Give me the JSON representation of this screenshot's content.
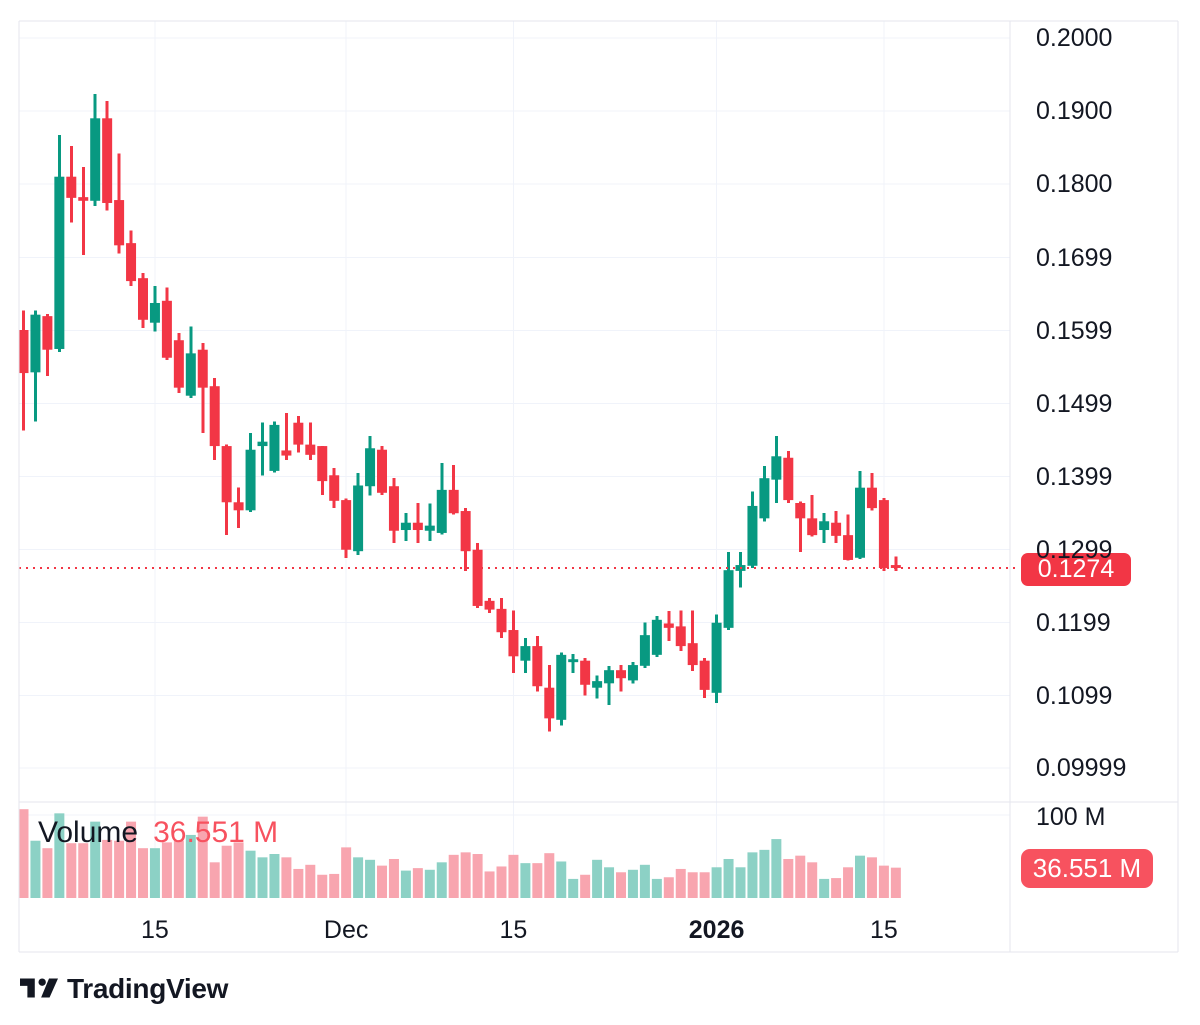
{
  "legend": {
    "title": "Volume",
    "value": "36.551 M"
  },
  "footer": {
    "brand": "TradingView"
  },
  "chart_data": {
    "type": "candlestick_with_volume",
    "description": "Daily crypto price candlesticks with volume pane, TradingView snapshot",
    "columns": [
      "open",
      "high",
      "low",
      "close",
      "volume_millions"
    ],
    "price_pane": {
      "y_ticks": [
        {
          "label": "0.2000",
          "value": 0.2
        },
        {
          "label": "0.1900",
          "value": 0.19
        },
        {
          "label": "0.1800",
          "value": 0.18
        },
        {
          "label": "0.1699",
          "value": 0.1699
        },
        {
          "label": "0.1599",
          "value": 0.1599
        },
        {
          "label": "0.1499",
          "value": 0.1499
        },
        {
          "label": "0.1399",
          "value": 0.1399
        },
        {
          "label": "0.1299",
          "value": 0.1299
        },
        {
          "label": "0.1199",
          "value": 0.1199
        },
        {
          "label": "0.1099",
          "value": 0.1099
        },
        {
          "label": "0.09999",
          "value": 0.09999
        }
      ],
      "last_price": {
        "label": "0.1274",
        "value": 0.1274
      }
    },
    "volume_pane": {
      "y_ticks": [
        {
          "label": "100 M",
          "value": 100
        }
      ],
      "last_volume": {
        "label": "36.551 M",
        "value": 36.551
      }
    },
    "x_ticks": [
      {
        "index": 11,
        "label": "15",
        "bold": false
      },
      {
        "index": 27,
        "label": "Dec",
        "bold": false
      },
      {
        "index": 41,
        "label": "15",
        "bold": false
      },
      {
        "index": 58,
        "label": "2026",
        "bold": true
      },
      {
        "index": 72,
        "label": "15",
        "bold": false
      }
    ],
    "colors": {
      "up": "#089981",
      "down": "#f23645",
      "vol_up": "#8cd1c5",
      "vol_down": "#f8a5af",
      "price_line": "#f23645",
      "grid": "#f0f3fa",
      "border": "#e4e6ee",
      "text": "#131722"
    },
    "candles": [
      [
        0.16,
        0.1627,
        0.1462,
        0.1541,
        107
      ],
      [
        0.1542,
        0.1627,
        0.1475,
        0.1621,
        69
      ],
      [
        0.1619,
        0.1622,
        0.1537,
        0.1573,
        60
      ],
      [
        0.1574,
        0.1867,
        0.157,
        0.181,
        102
      ],
      [
        0.181,
        0.1852,
        0.1747,
        0.1781,
        66
      ],
      [
        0.1782,
        0.1823,
        0.1703,
        0.1777,
        66
      ],
      [
        0.1777,
        0.1923,
        0.177,
        0.189,
        92
      ],
      [
        0.189,
        0.1914,
        0.1764,
        0.1774,
        70
      ],
      [
        0.1778,
        0.1842,
        0.1705,
        0.1716,
        69
      ],
      [
        0.1719,
        0.1736,
        0.166,
        0.1667,
        92
      ],
      [
        0.1671,
        0.1678,
        0.1603,
        0.1614,
        60
      ],
      [
        0.161,
        0.166,
        0.1598,
        0.1637,
        60
      ],
      [
        0.164,
        0.1658,
        0.1559,
        0.1562,
        67
      ],
      [
        0.1586,
        0.1596,
        0.1514,
        0.1521,
        69
      ],
      [
        0.151,
        0.1605,
        0.1507,
        0.1568,
        76
      ],
      [
        0.1573,
        0.1582,
        0.1459,
        0.1521,
        98
      ],
      [
        0.1523,
        0.1534,
        0.1422,
        0.1441,
        43
      ],
      [
        0.1441,
        0.1443,
        0.1319,
        0.1364,
        63
      ],
      [
        0.1364,
        0.1384,
        0.1329,
        0.1353,
        67
      ],
      [
        0.1353,
        0.1459,
        0.1351,
        0.1436,
        57
      ],
      [
        0.1441,
        0.1473,
        0.1401,
        0.1447,
        49
      ],
      [
        0.1407,
        0.1475,
        0.1405,
        0.147,
        53
      ],
      [
        0.1435,
        0.1486,
        0.1422,
        0.1428,
        49
      ],
      [
        0.1473,
        0.1482,
        0.1432,
        0.1443,
        35
      ],
      [
        0.1443,
        0.1473,
        0.1422,
        0.1429,
        40
      ],
      [
        0.1441,
        0.1441,
        0.1374,
        0.1393,
        28
      ],
      [
        0.1401,
        0.1411,
        0.1356,
        0.1366,
        29
      ],
      [
        0.1367,
        0.1369,
        0.1288,
        0.1299,
        61
      ],
      [
        0.1297,
        0.1404,
        0.1292,
        0.1387,
        49
      ],
      [
        0.1386,
        0.1455,
        0.1373,
        0.1438,
        46
      ],
      [
        0.1436,
        0.1441,
        0.1374,
        0.1377,
        39
      ],
      [
        0.1386,
        0.1397,
        0.1308,
        0.1325,
        47
      ],
      [
        0.1326,
        0.1349,
        0.1311,
        0.1336,
        33
      ],
      [
        0.1336,
        0.1363,
        0.1308,
        0.1326,
        36
      ],
      [
        0.1325,
        0.1362,
        0.1311,
        0.1332,
        34
      ],
      [
        0.1322,
        0.1418,
        0.132,
        0.1381,
        43
      ],
      [
        0.1381,
        0.1415,
        0.1347,
        0.1349,
        52
      ],
      [
        0.1352,
        0.1356,
        0.127,
        0.1297,
        55
      ],
      [
        0.1299,
        0.1308,
        0.1219,
        0.1222,
        53
      ],
      [
        0.1229,
        0.1233,
        0.1212,
        0.1217,
        32
      ],
      [
        0.1218,
        0.1233,
        0.1178,
        0.1186,
        38
      ],
      [
        0.1189,
        0.1216,
        0.113,
        0.1153,
        52
      ],
      [
        0.1147,
        0.1178,
        0.113,
        0.1167,
        42
      ],
      [
        0.1167,
        0.1181,
        0.1105,
        0.1112,
        42
      ],
      [
        0.111,
        0.1141,
        0.105,
        0.1068,
        54
      ],
      [
        0.1066,
        0.1158,
        0.1058,
        0.1155,
        44
      ],
      [
        0.1145,
        0.1156,
        0.113,
        0.1149,
        23
      ],
      [
        0.1147,
        0.1151,
        0.1099,
        0.1114,
        28
      ],
      [
        0.111,
        0.1127,
        0.1095,
        0.1119,
        46
      ],
      [
        0.1116,
        0.114,
        0.1086,
        0.1134,
        37
      ],
      [
        0.1134,
        0.1141,
        0.1105,
        0.1123,
        31
      ],
      [
        0.112,
        0.1145,
        0.1116,
        0.1141,
        34
      ],
      [
        0.114,
        0.1199,
        0.1137,
        0.1182,
        40
      ],
      [
        0.1155,
        0.1208,
        0.1152,
        0.1203,
        23
      ],
      [
        0.1198,
        0.1215,
        0.1174,
        0.1192,
        25
      ],
      [
        0.1194,
        0.1216,
        0.116,
        0.1167,
        35
      ],
      [
        0.1171,
        0.1216,
        0.1133,
        0.1141,
        31
      ],
      [
        0.1147,
        0.1151,
        0.1096,
        0.1107,
        31
      ],
      [
        0.1103,
        0.121,
        0.1089,
        0.1199,
        37
      ],
      [
        0.1192,
        0.1296,
        0.1189,
        0.1271,
        47
      ],
      [
        0.127,
        0.1296,
        0.1247,
        0.1278,
        37
      ],
      [
        0.1277,
        0.1379,
        0.1274,
        0.1359,
        55
      ],
      [
        0.1342,
        0.1414,
        0.1338,
        0.1397,
        58
      ],
      [
        0.1395,
        0.1455,
        0.1363,
        0.1427,
        71
      ],
      [
        0.1425,
        0.1434,
        0.1363,
        0.1367,
        47
      ],
      [
        0.1363,
        0.1365,
        0.1296,
        0.1342,
        51
      ],
      [
        0.1342,
        0.1374,
        0.1317,
        0.1319,
        43
      ],
      [
        0.1326,
        0.1349,
        0.1308,
        0.1338,
        23
      ],
      [
        0.1336,
        0.1352,
        0.1308,
        0.1318,
        24
      ],
      [
        0.1319,
        0.1347,
        0.1284,
        0.1285,
        37
      ],
      [
        0.1288,
        0.1407,
        0.1286,
        0.1384,
        51
      ],
      [
        0.1384,
        0.1404,
        0.1353,
        0.1356,
        49
      ],
      [
        0.1367,
        0.137,
        0.127,
        0.1274,
        39
      ],
      [
        0.1278,
        0.129,
        0.127,
        0.1274,
        36.551
      ]
    ]
  }
}
